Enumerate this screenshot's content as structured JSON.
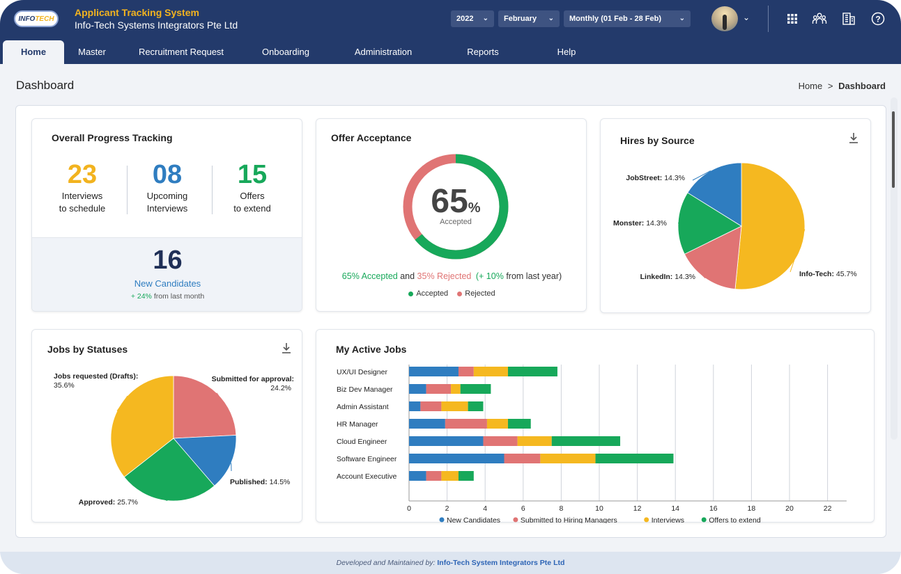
{
  "header": {
    "logo_text": "INFOTECH",
    "app_title": "Applicant Tracking System",
    "org_name": "Info-Tech Systems Integrators Pte Ltd",
    "year": "2022",
    "month": "February",
    "period": "Monthly (01 Feb - 28 Feb)",
    "icons": [
      "apps-grid-icon",
      "users-icon",
      "building-icon",
      "help-icon"
    ]
  },
  "nav": {
    "tabs": [
      "Home",
      "Master",
      "Recruitment Request",
      "Onboarding",
      "Administration",
      "Reports",
      "Help"
    ]
  },
  "page": {
    "title": "Dashboard",
    "breadcrumb_home": "Home",
    "breadcrumb_sep": ">",
    "breadcrumb_current": "Dashboard"
  },
  "progress": {
    "title": "Overall Progress Tracking",
    "metrics": [
      {
        "value": "23",
        "line1": "Interviews",
        "line2": "to schedule",
        "color": "#f2b31f"
      },
      {
        "value": "08",
        "line1": "Upcoming",
        "line2": "Interviews",
        "color": "#2f7dc0"
      },
      {
        "value": "15",
        "line1": "Offers",
        "line2": "to extend",
        "color": "#17a85a"
      }
    ],
    "new_candidates_value": "16",
    "new_candidates_label": "New Candidates",
    "change": "+ 24%",
    "change_suffix": "from last month"
  },
  "offer": {
    "title": "Offer Acceptance",
    "percent": "65",
    "percent_sign": "%",
    "center_label": "Accepted",
    "accepted_fraction": 0.65,
    "accepted_text": "65% Accepted",
    "and": "and",
    "rejected_text": "35% Rejected",
    "change_text": "(+ 10%",
    "change_suffix": "from last year)",
    "legend": [
      "Accepted",
      "Rejected"
    ],
    "colors": {
      "accepted": "#17a85a",
      "rejected": "#e07474"
    }
  },
  "hires_by_source": {
    "title": "Hires by Source",
    "icon": "download-icon"
  },
  "jobs_by_status": {
    "title": "Jobs by Statuses",
    "icon": "download-icon"
  },
  "active_jobs": {
    "title": "My Active Jobs"
  },
  "chart_data": [
    {
      "type": "pie",
      "title": "Hires by Source",
      "labels": [
        "Info-Tech",
        "LinkedIn",
        "Monster",
        "JobStreet"
      ],
      "values": [
        45.7,
        14.3,
        14.3,
        14.3
      ],
      "display": [
        "Info-Tech: 45.7%",
        "LinkedIn: 14.3%",
        "Monster: 14.3%",
        "JobStreet: 14.3%"
      ],
      "colors": [
        "#f5b820",
        "#e07474",
        "#17a85a",
        "#2f7dc0"
      ]
    },
    {
      "type": "pie",
      "title": "Jobs by Statuses",
      "labels": [
        "Submitted for approval",
        "Published",
        "Approved",
        "Jobs requested (Drafts)"
      ],
      "values": [
        24.2,
        14.5,
        25.7,
        35.6
      ],
      "display": [
        "Submitted for approval:",
        "Published: 14.5%",
        "Approved: 25.7%",
        "Jobs requested (Drafts):"
      ],
      "display2": [
        "24.2%",
        "",
        "",
        "35.6%"
      ],
      "colors": [
        "#e07474",
        "#2f7dc0",
        "#17a85a",
        "#f5b820"
      ]
    },
    {
      "type": "bar",
      "title": "My Active Jobs",
      "stacked": true,
      "orientation": "horizontal",
      "categories": [
        "UX/UI Designer",
        "Biz Dev Manager",
        "Admin Assistant",
        "HR Manager",
        "Cloud Engineer",
        "Software Engineer",
        "Account Executive"
      ],
      "series": [
        {
          "name": "New Candidates",
          "color": "#2f7dc0",
          "values": [
            2.6,
            0.9,
            0.6,
            1.9,
            3.9,
            5.0,
            0.9
          ]
        },
        {
          "name": "Submitted to Hiring Managers",
          "color": "#e07474",
          "values": [
            0.8,
            1.3,
            1.1,
            2.2,
            1.8,
            1.9,
            0.8
          ]
        },
        {
          "name": "Interviews",
          "color": "#f5b820",
          "values": [
            1.8,
            0.5,
            1.4,
            1.1,
            1.8,
            2.9,
            0.9
          ]
        },
        {
          "name": "Offers to extend",
          "color": "#17a85a",
          "values": [
            2.6,
            1.6,
            0.8,
            1.2,
            3.6,
            4.1,
            0.8
          ]
        }
      ],
      "xlim": [
        0,
        23
      ],
      "xticks": [
        0,
        2,
        4,
        6,
        8,
        10,
        12,
        14,
        16,
        18,
        20,
        22
      ],
      "grid": true,
      "legend_position": "bottom"
    }
  ],
  "footer": {
    "prefix": "Developed and Maintained by:",
    "company": "Info-Tech System Integrators Pte Ltd"
  }
}
